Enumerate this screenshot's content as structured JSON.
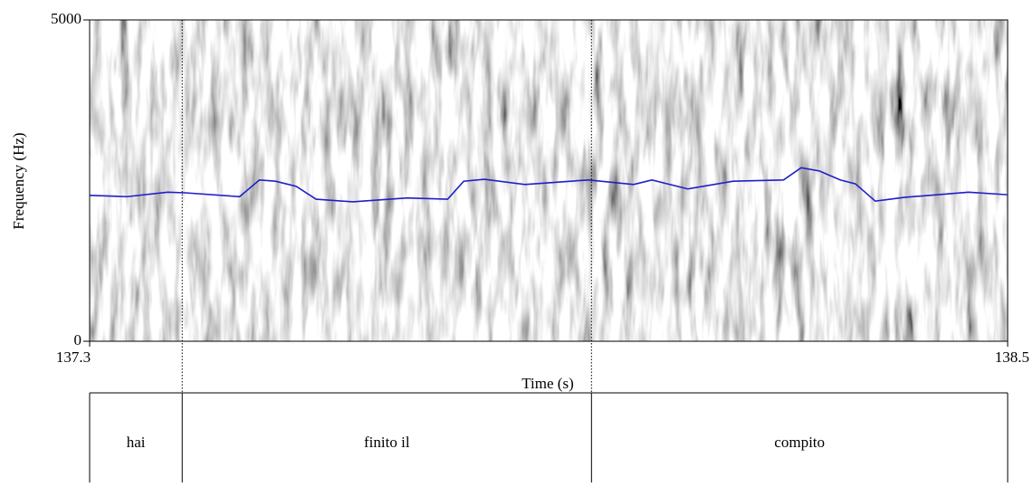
{
  "chart_data": {
    "type": "line",
    "xlabel": "Time (s)",
    "ylabel": "Frequency (Hz)",
    "xlim": [
      137.3,
      138.5
    ],
    "ylim": [
      0,
      5000
    ],
    "xticks": [
      137.3,
      138.5
    ],
    "yticks": [
      0,
      5000
    ],
    "color": "#1f1fc8",
    "x": [
      137.3,
      137.349,
      137.402,
      137.425,
      137.496,
      137.522,
      137.543,
      137.57,
      137.596,
      137.644,
      137.715,
      137.768,
      137.789,
      137.816,
      137.869,
      137.952,
      138.011,
      138.035,
      138.082,
      138.141,
      138.207,
      138.23,
      138.254,
      138.281,
      138.301,
      138.327,
      138.366,
      138.449,
      138.5
    ],
    "values": [
      2270,
      2250,
      2320,
      2310,
      2250,
      2510,
      2490,
      2410,
      2210,
      2170,
      2230,
      2210,
      2490,
      2520,
      2440,
      2510,
      2440,
      2510,
      2370,
      2490,
      2510,
      2700,
      2650,
      2510,
      2450,
      2180,
      2240,
      2320,
      2280
    ],
    "intervals": [
      {
        "label": "hai",
        "start": 137.3,
        "end": 137.421
      },
      {
        "label": "finito il",
        "start": 137.421,
        "end": 137.956
      },
      {
        "label": "compito",
        "start": 137.956,
        "end": 138.5
      }
    ]
  }
}
